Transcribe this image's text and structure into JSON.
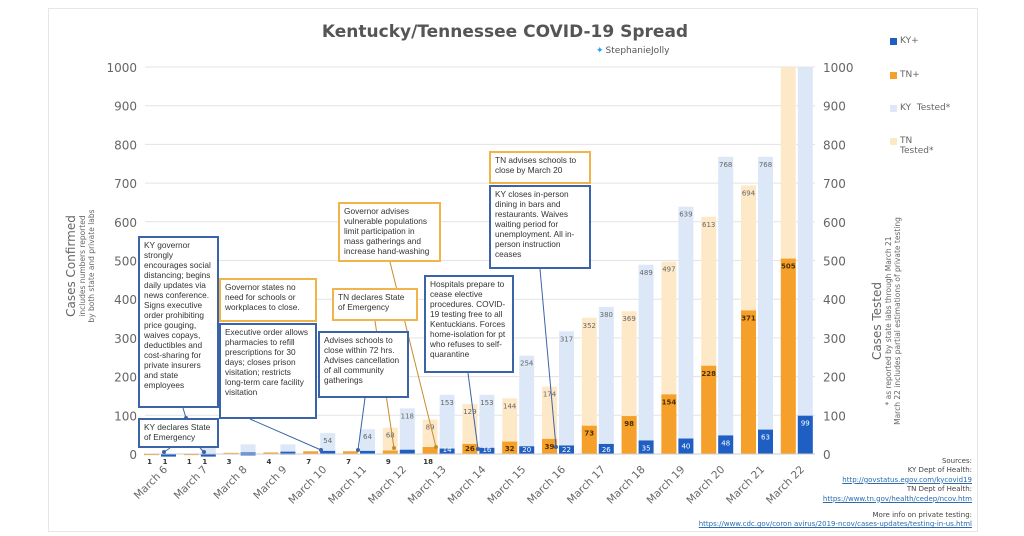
{
  "chart_data": {
    "type": "bar",
    "title": "Kentucky/Tennessee COVID-19 Spread",
    "subtitle": "StephanieJolly",
    "categories": [
      "March 6",
      "March 7",
      "March 8",
      "March 9",
      "March 10",
      "March 11",
      "March 12",
      "March 13",
      "March 14",
      "March 15",
      "March 16",
      "March 17",
      "March 18",
      "March 19",
      "March 20",
      "March 21",
      "March 22"
    ],
    "series": [
      {
        "name": "KY+",
        "color": "#1f5fc4",
        "values": [
          1,
          1,
          4,
          6,
          8,
          8,
          11,
          14,
          16,
          20,
          22,
          26,
          35,
          40,
          48,
          63,
          99
        ]
      },
      {
        "name": "TN+",
        "color": "#f5a02a",
        "values": [
          1,
          1,
          3,
          4,
          7,
          7,
          9,
          18,
          26,
          32,
          39,
          73,
          98,
          154,
          228,
          371,
          505
        ]
      },
      {
        "name": "KY  Tested*",
        "color": "#dce8f8",
        "values": [
          null,
          20,
          25,
          25,
          54,
          64,
          118,
          153,
          153,
          254,
          317,
          380,
          489,
          639,
          768,
          768,
          1000
        ]
      },
      {
        "name": "TN Tested*",
        "color": "#fde9c8",
        "values": [
          null,
          null,
          null,
          null,
          null,
          null,
          68,
          89,
          129,
          144,
          174,
          352,
          369,
          497,
          613,
          694,
          1000
        ]
      }
    ],
    "ylabel": "Cases  Confirmed",
    "ylabel_note": [
      "includes numbers reported",
      "by both state and private labs"
    ],
    "y2label": "Cases  Tested",
    "y2label_note": [
      "* as reported by state labs through March 21",
      "March 22 includes partial estimations of private testing"
    ],
    "ylim": [
      0,
      1000
    ],
    "yticks": [
      "0",
      "100",
      "200",
      "300",
      "400",
      "500",
      "600",
      "700",
      "800",
      "900",
      "1000"
    ],
    "grid": true,
    "legend": "right"
  },
  "annotations": [
    {
      "party": "ky",
      "text": "KY governor strongly encourages social distancing; begins daily updates via news conference. Signs executive order prohibiting price gouging, waives copays, deductibles and cost-sharing for private insurers and state employees"
    },
    {
      "party": "ky",
      "text": "KY declares State of Emergency"
    },
    {
      "party": "tn",
      "text": "Governor states no need for schools or workplaces to close."
    },
    {
      "party": "ky",
      "text": "Executive order allows pharmacies to refill prescriptions for 30 days; closes prison visitation; restricts long-term care facility visitation"
    },
    {
      "party": "tn",
      "text": "TN declares State of Emergency"
    },
    {
      "party": "ky",
      "text": "Advises schools to close within 72 hrs. Advises cancellation of all community gatherings"
    },
    {
      "party": "tn",
      "text": "Governor advises vulnerable populations limit participation in mass gatherings and increase hand-washing"
    },
    {
      "party": "ky",
      "text": "Hospitals prepare to cease elective procedures. COVID-19 testing free to all Kentuckians. Forces home-isolation for pt who refuses to self-quarantine"
    },
    {
      "party": "tn",
      "text": "TN advises schools to close by March 20"
    },
    {
      "party": "ky",
      "text": "KY closes in-person dining in bars and restaurants. Waives waiting period for unemployment. All in-person instruction ceases"
    }
  ],
  "sources": {
    "heading": "Sources:",
    "ky_label": "KY Dept of Health:",
    "ky_link": "http://govstatus.egov.com/kycovid19",
    "tn_label": "TN Dept of Health:",
    "tn_link": "https://www.tn.gov/health/cedep/ncov.htm",
    "private_label": "More info on private testing:",
    "private_link": "https://www.cdc.gov/coron avirus/2019-ncov/cases-updates/testing-in-us.html"
  },
  "icons": {
    "handle_icon": "twitter-bird-icon"
  }
}
